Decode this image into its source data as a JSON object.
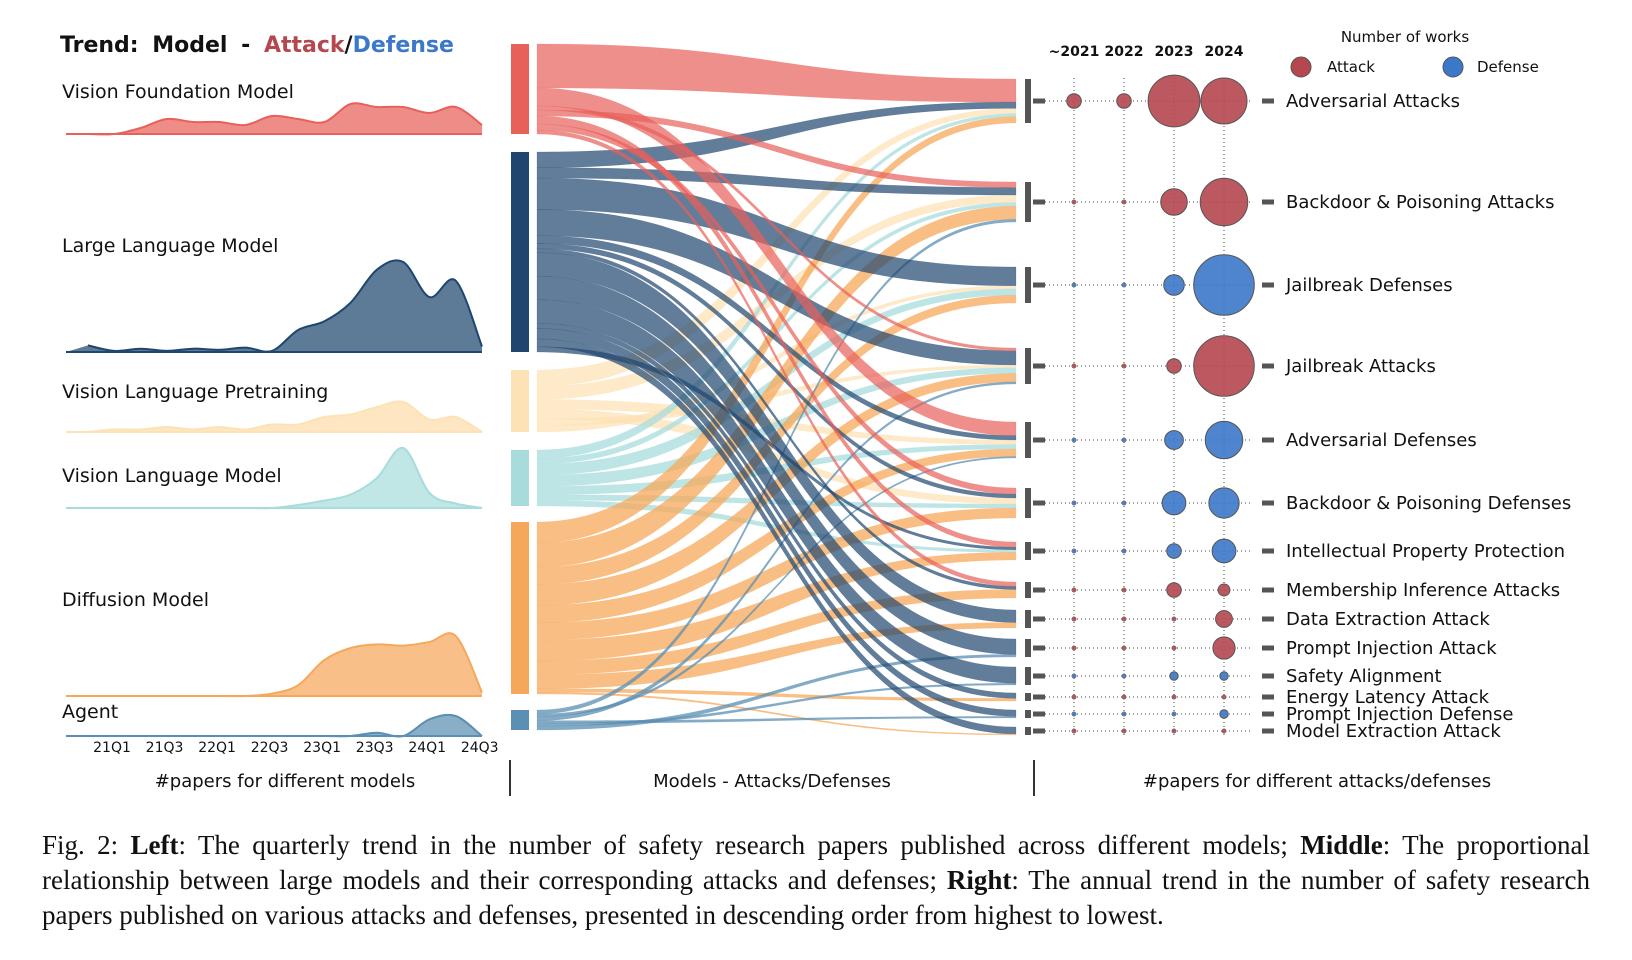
{
  "title": {
    "prefix": "Trend:",
    "model": "Model",
    "dash": "-",
    "attack": "Attack",
    "slash": "/",
    "defense": "Defense"
  },
  "colors": {
    "attack": "#b5474f",
    "defense": "#3b78c9",
    "vfm": "#e8605a",
    "llm": "#1f466f",
    "vlp": "#fde2b6",
    "vlm": "#a8dcdc",
    "dm": "#f5a85a",
    "agent": "#5b8fb3"
  },
  "models": [
    "Vision Foundation Model",
    "Large Language Model",
    "Vision Language Pretraining",
    "Vision Language Model",
    "Diffusion Model",
    "Agent"
  ],
  "quarter_ticks": [
    "21Q1",
    "21Q3",
    "22Q1",
    "22Q3",
    "23Q1",
    "23Q3",
    "24Q1",
    "24Q3"
  ],
  "years": [
    "~2021",
    "2022",
    "2023",
    "2024"
  ],
  "legend": {
    "title": "Number of works",
    "attack": "Attack",
    "defense": "Defense"
  },
  "categories": [
    {
      "label": "Adversarial Attacks",
      "type": "attack",
      "counts": [
        3,
        3,
        38,
        30
      ]
    },
    {
      "label": "Backdoor & Poisoning Attacks",
      "type": "attack",
      "counts": [
        0,
        0,
        10,
        32
      ]
    },
    {
      "label": "Jailbreak Defenses",
      "type": "defense",
      "counts": [
        0,
        0,
        6,
        52
      ]
    },
    {
      "label": "Jailbreak Attacks",
      "type": "attack",
      "counts": [
        0,
        0,
        3,
        52
      ]
    },
    {
      "label": "Adversarial Defenses",
      "type": "defense",
      "counts": [
        0,
        0,
        5,
        20
      ]
    },
    {
      "label": "Backdoor & Poisoning Defenses",
      "type": "defense",
      "counts": [
        0,
        0,
        8,
        13
      ]
    },
    {
      "label": "Intellectual Property Protection",
      "type": "defense",
      "counts": [
        0,
        0,
        3,
        8
      ]
    },
    {
      "label": "Membership Inference Attacks",
      "type": "attack",
      "counts": [
        0,
        0,
        3,
        2
      ]
    },
    {
      "label": "Data Extraction Attack",
      "type": "attack",
      "counts": [
        0,
        0,
        0,
        4
      ]
    },
    {
      "label": "Prompt Injection Attack",
      "type": "attack",
      "counts": [
        0,
        0,
        0,
        7
      ]
    },
    {
      "label": "Safety Alignment",
      "type": "defense",
      "counts": [
        0,
        0,
        1,
        1
      ]
    },
    {
      "label": "Energy Latency Attack",
      "type": "attack",
      "counts": [
        0,
        0,
        0,
        0
      ]
    },
    {
      "label": "Prompt Injection Defense",
      "type": "defense",
      "counts": [
        0,
        0,
        0,
        1
      ]
    },
    {
      "label": "Model Extraction Attack",
      "type": "attack",
      "counts": [
        0,
        0,
        0,
        0
      ]
    }
  ],
  "panel_labels": {
    "left": "#papers for different models",
    "middle": "Models - Attacks/Defenses",
    "right": "#papers for different attacks/defenses"
  },
  "caption": {
    "fig": "Fig. 2:",
    "left_label": "Left",
    "left_text": ": The quarterly trend in the number of safety research papers published across different models; ",
    "middle_label": "Middle",
    "middle_text": ": The proportional relationship between large models and their corresponding attacks and defenses; ",
    "right_label": "Right",
    "right_text": ": The annual trend in the number of safety research papers published on various attacks and defenses, presented in descending order from highest to lowest."
  },
  "chart_data": [
    {
      "type": "area",
      "title": "",
      "xlabel": "#papers for different models",
      "x": [
        "21Q1",
        "21Q2",
        "21Q3",
        "21Q4",
        "22Q1",
        "22Q2",
        "22Q3",
        "22Q4",
        "23Q1",
        "23Q2",
        "23Q3",
        "23Q4",
        "24Q1",
        "24Q2",
        "24Q3",
        "24Q4"
      ],
      "series": [
        {
          "name": "Vision Foundation Model",
          "values": [
            0,
            0,
            2,
            5,
            4,
            4,
            3,
            6,
            5,
            4,
            10,
            9,
            9,
            7,
            9,
            3
          ]
        },
        {
          "name": "Large Language Model",
          "values": [
            6,
            1,
            3,
            1,
            3,
            2,
            4,
            1,
            20,
            28,
            45,
            75,
            82,
            50,
            65,
            5
          ]
        },
        {
          "name": "Vision Language Pretraining",
          "values": [
            0,
            1,
            1,
            2,
            1,
            2,
            1,
            3,
            3,
            6,
            7,
            10,
            12,
            5,
            6,
            0
          ]
        },
        {
          "name": "Vision Language Model",
          "values": [
            0,
            0,
            0,
            0,
            0,
            0,
            0,
            0,
            2,
            5,
            9,
            20,
            40,
            10,
            3,
            0
          ]
        },
        {
          "name": "Diffusion Model",
          "values": [
            0,
            0,
            0,
            0,
            0,
            0,
            0,
            2,
            9,
            30,
            40,
            43,
            42,
            45,
            50,
            3
          ]
        },
        {
          "name": "Agent",
          "values": [
            0,
            0,
            0,
            0,
            0,
            0,
            0,
            0,
            0,
            0,
            0,
            2,
            0,
            10,
            12,
            0
          ]
        }
      ]
    },
    {
      "type": "scatter",
      "title": "",
      "xlabel": "#papers for different attacks/defenses",
      "categories": [
        "~2021",
        "2022",
        "2023",
        "2024"
      ],
      "series": [
        {
          "name": "Adversarial Attacks",
          "values": [
            3,
            3,
            38,
            30
          ]
        },
        {
          "name": "Backdoor & Poisoning Attacks",
          "values": [
            0,
            0,
            10,
            32
          ]
        },
        {
          "name": "Jailbreak Defenses",
          "values": [
            0,
            0,
            6,
            52
          ]
        },
        {
          "name": "Jailbreak Attacks",
          "values": [
            0,
            0,
            3,
            52
          ]
        },
        {
          "name": "Adversarial Defenses",
          "values": [
            0,
            0,
            5,
            20
          ]
        },
        {
          "name": "Backdoor & Poisoning Defenses",
          "values": [
            0,
            0,
            8,
            13
          ]
        },
        {
          "name": "Intellectual Property Protection",
          "values": [
            0,
            0,
            3,
            8
          ]
        },
        {
          "name": "Membership Inference Attacks",
          "values": [
            0,
            0,
            3,
            2
          ]
        },
        {
          "name": "Data Extraction Attack",
          "values": [
            0,
            0,
            0,
            4
          ]
        },
        {
          "name": "Prompt Injection Attack",
          "values": [
            0,
            0,
            0,
            7
          ]
        },
        {
          "name": "Safety Alignment",
          "values": [
            0,
            0,
            1,
            1
          ]
        },
        {
          "name": "Energy Latency Attack",
          "values": [
            0,
            0,
            0,
            0
          ]
        },
        {
          "name": "Prompt Injection Defense",
          "values": [
            0,
            0,
            0,
            1
          ]
        },
        {
          "name": "Model Extraction Attack",
          "values": [
            0,
            0,
            0,
            0
          ]
        }
      ]
    }
  ]
}
